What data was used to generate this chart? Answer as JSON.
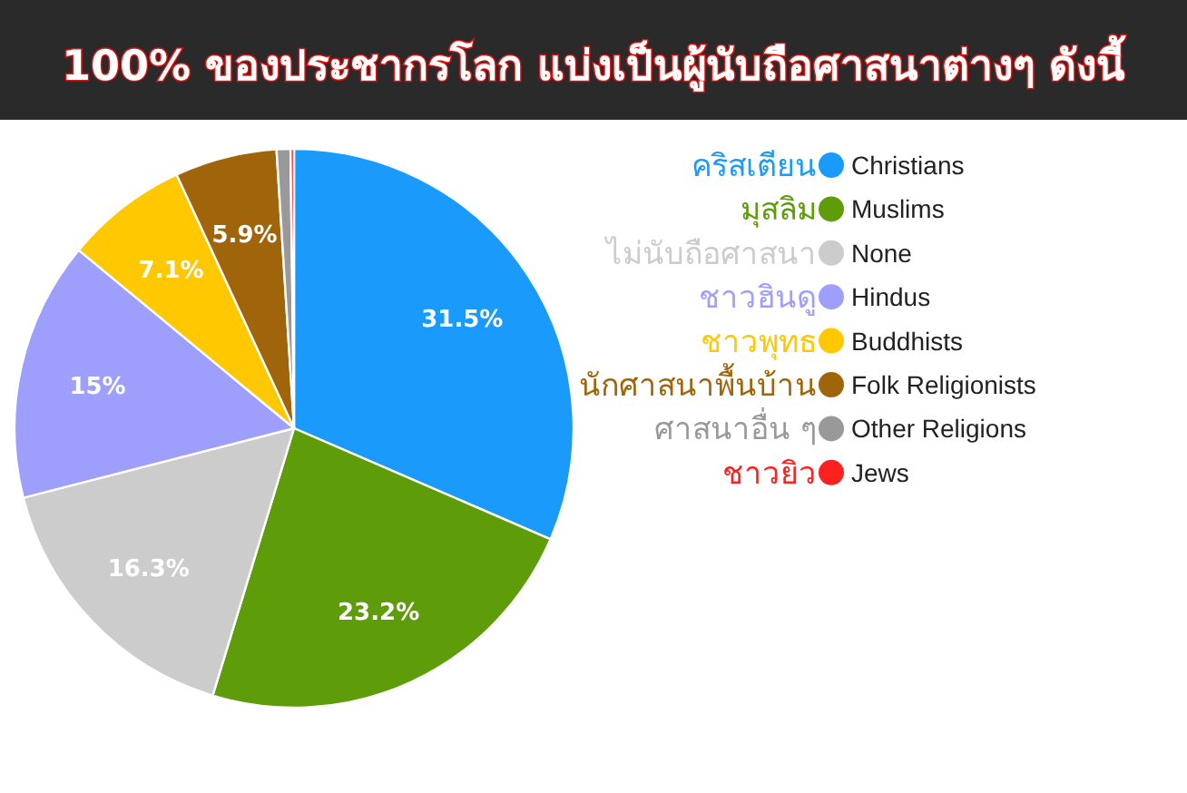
{
  "chart_data": {
    "type": "pie",
    "title": "100% ของประชากรโลก แบ่งเป็นผู้นับถือศาสนาต่างๆ ดังนี้",
    "categories": [
      "Christians",
      "Muslims",
      "None",
      "Hindus",
      "Buddhists",
      "Folk Religionists",
      "Other Religions",
      "Jews"
    ],
    "values": [
      31.5,
      23.2,
      16.3,
      15,
      7.1,
      5.9,
      0.8,
      0.2
    ],
    "colors": [
      "#1a9bfc",
      "#5e9c0a",
      "#cccccc",
      "#9e9efc",
      "#ffc800",
      "#a0650a",
      "#999999",
      "#ff2020"
    ],
    "value_labels": [
      "31.5%",
      "23.2%",
      "16.3%",
      "15%",
      "7.1%",
      "5.9%",
      null,
      null
    ],
    "annotations": [
      "คริสเตียน",
      "มุสลิม",
      "ไม่นับถือศาสนา",
      "ชาวฮินดู",
      "ชาวพุทธ",
      "นักศาสนาพื้นบ้าน",
      "ศาสนาอื่น ๆ",
      "ชาวยิว"
    ],
    "legend": "right"
  }
}
